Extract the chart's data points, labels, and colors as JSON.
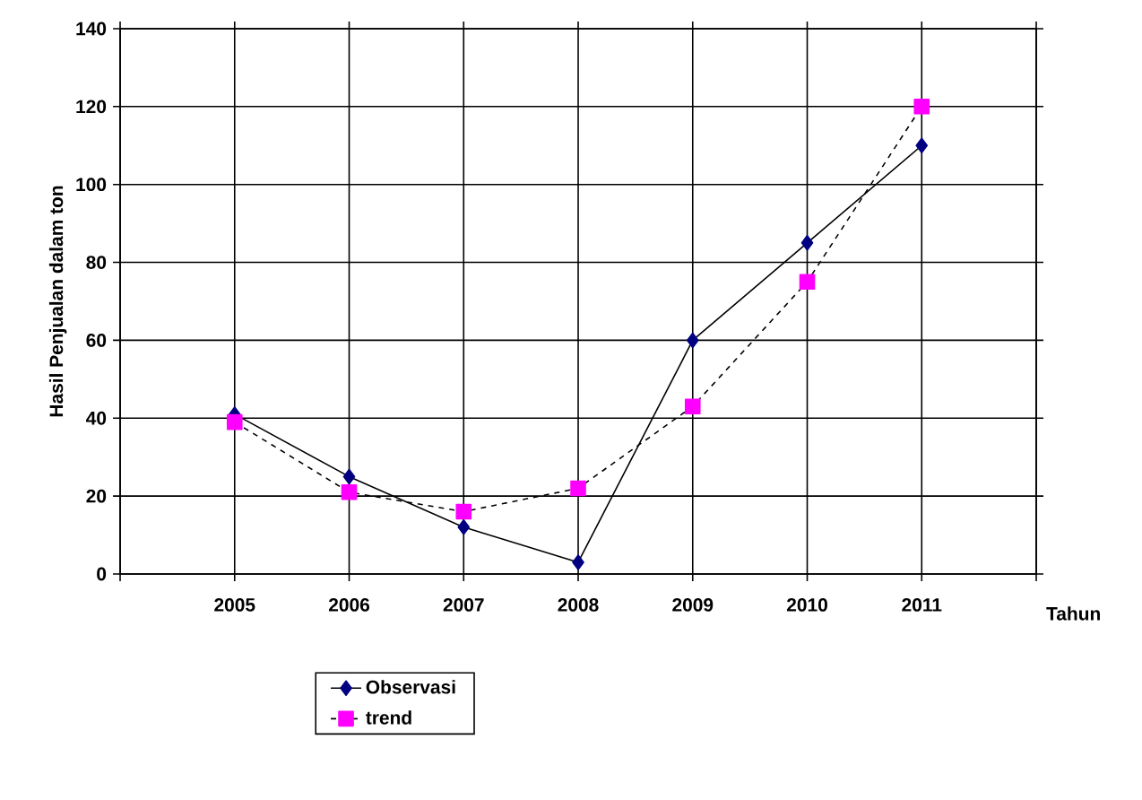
{
  "chart_data": {
    "type": "line",
    "categories": [
      "2005",
      "2006",
      "2007",
      "2008",
      "2009",
      "2010",
      "2011"
    ],
    "xlabel": "Tahun",
    "ylabel": "Hasil Penjualan  dalam  ton",
    "ylim": [
      0,
      140
    ],
    "yticks": [
      0,
      20,
      40,
      60,
      80,
      100,
      120,
      140
    ],
    "grid": true,
    "legend": "bottom",
    "series": [
      {
        "name": "Observasi",
        "color": "#000080",
        "marker": "diamond",
        "line_style": "solid",
        "values": [
          41,
          25,
          12,
          3,
          60,
          85,
          110
        ]
      },
      {
        "name": "trend",
        "color": "#ff00ff",
        "marker": "square",
        "line_style": "dashed",
        "values": [
          39,
          21,
          16,
          22,
          43,
          75,
          120
        ]
      }
    ]
  }
}
